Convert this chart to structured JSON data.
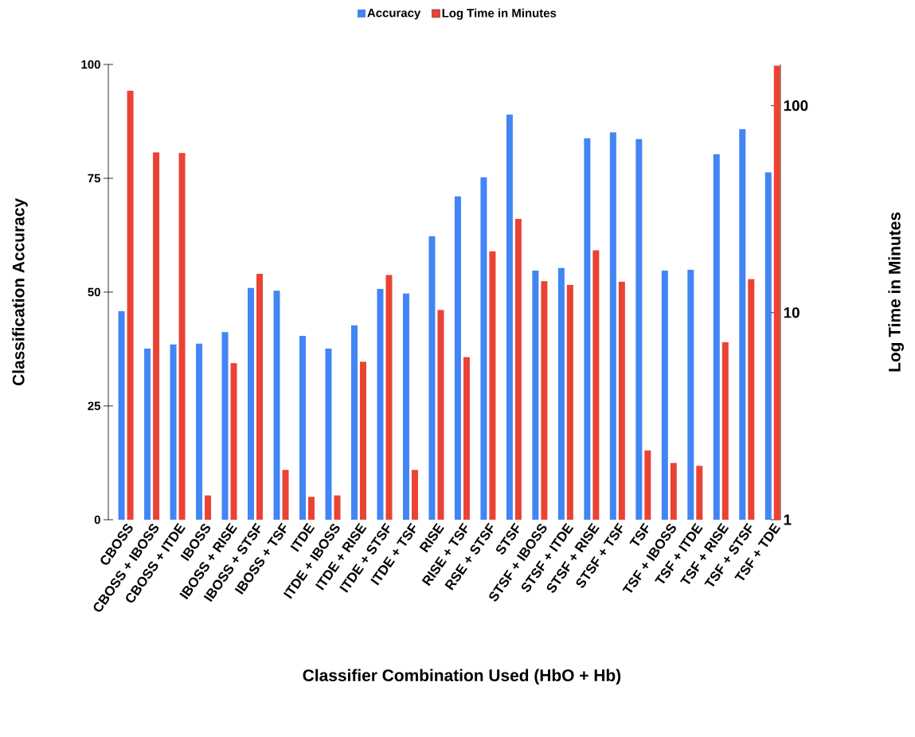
{
  "chart_data": {
    "type": "bar",
    "categories": [
      "CBOSS",
      "CBOSS + IBOSS",
      "CBOSS + ITDE",
      "IBOSS",
      "IBOSS + RISE",
      "IBOSS + STSF",
      "IBOSS + TSF",
      "ITDE",
      "ITDE + IBOSS",
      "ITDE + RISE",
      "ITDE + STSF",
      "ITDE + TSF",
      "RISE",
      "RISE + TSF",
      "RSE + STSF",
      "STSF",
      "STSF + IBOSS",
      "STSF + ITDE",
      "STSF + RISE",
      "STSF + TSF",
      "TSF",
      "TSF + IBOSS",
      "TSF + ITDE",
      "TSF + RISE",
      "TSF + STSF",
      "TSF + TDE"
    ],
    "series": [
      {
        "name": "Accuracy",
        "color": "#4285f4",
        "values": [
          45.8,
          37.6,
          38.5,
          38.7,
          41.2,
          50.9,
          50.3,
          40.4,
          37.6,
          42.7,
          50.7,
          49.7,
          62.3,
          71.0,
          75.2,
          89.0,
          54.7,
          55.3,
          83.8,
          85.1,
          83.6,
          54.7,
          54.9,
          80.3,
          85.8,
          76.3
        ]
      },
      {
        "name": "Log Time in Minutes",
        "color": "#ea4335",
        "axis": "y2",
        "values": [
          118,
          59.4,
          59.0,
          1.31,
          5.7,
          15.4,
          1.74,
          1.29,
          1.31,
          5.8,
          15.2,
          1.74,
          10.3,
          6.1,
          19.8,
          28.4,
          14.2,
          13.6,
          20.0,
          14.1,
          2.16,
          1.88,
          1.82,
          7.2,
          14.5,
          156
        ]
      }
    ],
    "xlabel": "Classifier Combination Used (HbO + Hb)",
    "ylabel": "Classification Accuracy",
    "y2label": "Log Time in Minutes",
    "ylim": [
      0,
      100
    ],
    "yticks": [
      0,
      25,
      50,
      75,
      100
    ],
    "y2lim": [
      1,
      158
    ],
    "y2ticks": [
      1,
      10,
      100
    ],
    "log": "y2",
    "legend": "top"
  }
}
